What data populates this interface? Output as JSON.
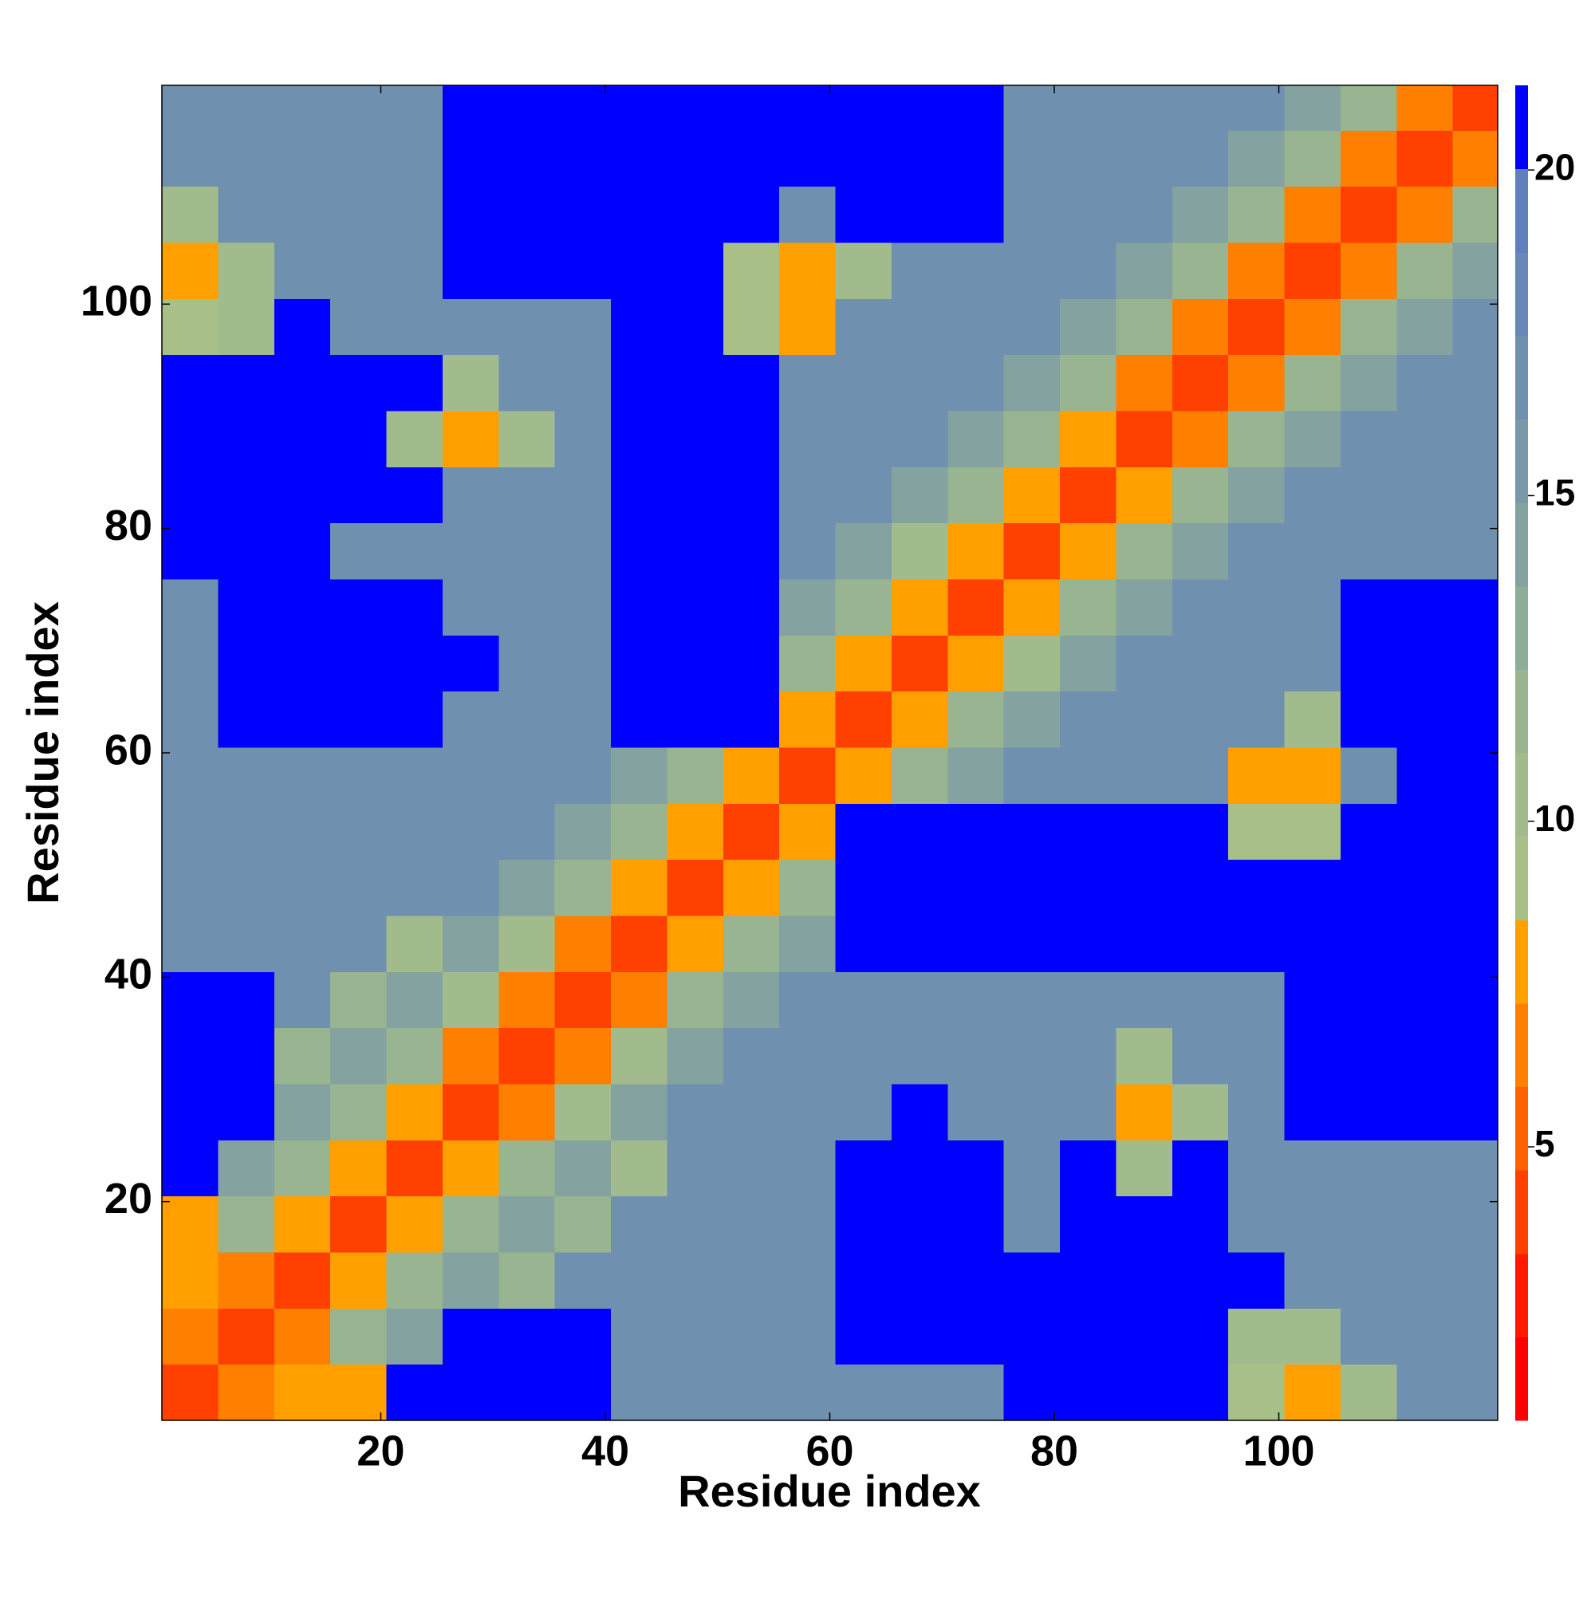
{
  "chart_data": {
    "type": "heatmap",
    "xlabel": "Residue index",
    "ylabel": "Residue index",
    "xlim": [
      0.5,
      119.5
    ],
    "ylim": [
      0.5,
      119.5
    ],
    "xticks": [
      20,
      40,
      60,
      80,
      100
    ],
    "yticks": [
      20,
      40,
      60,
      80,
      100
    ],
    "xbins": [
      0.5,
      5.5,
      10.5,
      15.5,
      20.5,
      25.5,
      30.5,
      35.5,
      40.5,
      45.5,
      50.5,
      55.5,
      60.5,
      65.5,
      70.5,
      75.5,
      80.5,
      85.5,
      90.5,
      95.5,
      100.5,
      105.5,
      110.5,
      115.5,
      119.5
    ],
    "ybins": [
      0.5,
      5.5,
      10.5,
      15.5,
      20.5,
      25.5,
      30.5,
      35.5,
      40.5,
      45.5,
      50.5,
      55.5,
      60.5,
      65.5,
      70.5,
      75.5,
      80.5,
      85.5,
      90.5,
      95.5,
      100.5,
      105.5,
      110.5,
      115.5,
      119.5
    ],
    "clim": [
      0.8,
      21.3
    ],
    "cticks": [
      5,
      10,
      15,
      20
    ],
    "colormap": [
      "#ff0000",
      "#ff1a00",
      "#ff4000",
      "#ff6000",
      "#ff8000",
      "#ffa000",
      "#a8bf88",
      "#a2bb8c",
      "#98b490",
      "#8eac98",
      "#84a2a0",
      "#7a98a8",
      "#7090b0",
      "#6888b8",
      "#5f80bc",
      "#0000ff"
    ],
    "values": [
      [
        3.8,
        6,
        8,
        8,
        21,
        21,
        21,
        21,
        17,
        17,
        17,
        17,
        17,
        17,
        17,
        21,
        21,
        21,
        21,
        9,
        8,
        11,
        17,
        17
      ],
      [
        6,
        3.8,
        6,
        12,
        14,
        21,
        21,
        21,
        17,
        17,
        17,
        17,
        21,
        21,
        21,
        21,
        21,
        21,
        21,
        10,
        10,
        17,
        17,
        17
      ],
      [
        8,
        6,
        3.8,
        8,
        12,
        14,
        12,
        17,
        17,
        17,
        17,
        17,
        21,
        21,
        21,
        21,
        21,
        21,
        21,
        21,
        17,
        17,
        17,
        17
      ],
      [
        8,
        12,
        8,
        3.8,
        8,
        12,
        14,
        12,
        17,
        17,
        17,
        17,
        21,
        21,
        21,
        17,
        21,
        21,
        21,
        17,
        17,
        17,
        17,
        17
      ],
      [
        21,
        14,
        12,
        8,
        3.8,
        8,
        12,
        14,
        11,
        17,
        17,
        17,
        21,
        21,
        21,
        17,
        20.5,
        11,
        20.5,
        17,
        17,
        17,
        17,
        17
      ],
      [
        21,
        21,
        14,
        12,
        8,
        3.8,
        7,
        10,
        14,
        17,
        17,
        17,
        17,
        21,
        17,
        17,
        17,
        8,
        11,
        17,
        21,
        21,
        21,
        21
      ],
      [
        21,
        21,
        12,
        14,
        12,
        7,
        3.8,
        7,
        10,
        14,
        17,
        17,
        17,
        17,
        17,
        17,
        17,
        10,
        17,
        17,
        21,
        21,
        21,
        21
      ],
      [
        21,
        21,
        17,
        12,
        14,
        10,
        7,
        3.8,
        7,
        12,
        14,
        17,
        17,
        17,
        17,
        17,
        17,
        17,
        17,
        17,
        21,
        21,
        21,
        21
      ],
      [
        17,
        17,
        17,
        17,
        11,
        14,
        10,
        7,
        3.8,
        8,
        12,
        14,
        21,
        21,
        21,
        21,
        21,
        21,
        21,
        21,
        21,
        21,
        21,
        21
      ],
      [
        17,
        17,
        17,
        17,
        17,
        17,
        14,
        12,
        8,
        3.8,
        8,
        12,
        21,
        21,
        21,
        21,
        21,
        21,
        21,
        21,
        21,
        21,
        21,
        21
      ],
      [
        17,
        17,
        17,
        17,
        17,
        17,
        17,
        14,
        12,
        8,
        3.8,
        8,
        21,
        21,
        21,
        21,
        21,
        21,
        21,
        9,
        9,
        20.5,
        20.5,
        20.5
      ],
      [
        17,
        17,
        17,
        17,
        17,
        17,
        17,
        17,
        14,
        12,
        8,
        3.8,
        8,
        12,
        14,
        17,
        17,
        17,
        17,
        8,
        8,
        17,
        20.5,
        20.5
      ],
      [
        17,
        21,
        21,
        21,
        21,
        17,
        17,
        17,
        21,
        21,
        21,
        8,
        3.8,
        8,
        12,
        14,
        17,
        17,
        17,
        17,
        10,
        21,
        21,
        21
      ],
      [
        17,
        21,
        21,
        21,
        21,
        21,
        17,
        17,
        21,
        21,
        21,
        12,
        8,
        3.8,
        8,
        10,
        14,
        17,
        17,
        17,
        17,
        21,
        21,
        21
      ],
      [
        17,
        21,
        21,
        21,
        21,
        17,
        17,
        17,
        21,
        21,
        21,
        14,
        12,
        8,
        3.8,
        8,
        12,
        14,
        17,
        17,
        17,
        21,
        21,
        21
      ],
      [
        21,
        21,
        21,
        17,
        17,
        17,
        17,
        17,
        21,
        21,
        21,
        17,
        14,
        10,
        8,
        3.8,
        8,
        12,
        14,
        17,
        17,
        17,
        17,
        17
      ],
      [
        21,
        21,
        21,
        21,
        20.5,
        17,
        17,
        17,
        21,
        21,
        21,
        17,
        17,
        14,
        12,
        8,
        3.8,
        8,
        12,
        14,
        17,
        17,
        17,
        17
      ],
      [
        21,
        21,
        21,
        21,
        11,
        8,
        10,
        17,
        21,
        21,
        21,
        17,
        17,
        17,
        14,
        12,
        8,
        3.8,
        7,
        12,
        14,
        17,
        17,
        17
      ],
      [
        21,
        21,
        21,
        21,
        20.5,
        11,
        17,
        17,
        21,
        21,
        21,
        17,
        17,
        17,
        17,
        14,
        12,
        7,
        3.8,
        6,
        12,
        14,
        17,
        17
      ],
      [
        9,
        10,
        21,
        17,
        17,
        17,
        17,
        17,
        21,
        21,
        9,
        8,
        17,
        17,
        17,
        17,
        14,
        12,
        6,
        3.8,
        6,
        12,
        14,
        17
      ],
      [
        8,
        10,
        17,
        17,
        17,
        21,
        21,
        21,
        21,
        21,
        9,
        8,
        10,
        17,
        17,
        17,
        17,
        14,
        12,
        6,
        3.8,
        6,
        12,
        14
      ],
      [
        11,
        17,
        17,
        17,
        17,
        21,
        21,
        21,
        21,
        21,
        20.5,
        17,
        21,
        21,
        21,
        17,
        17,
        17,
        14,
        12,
        6,
        3.8,
        6,
        12
      ],
      [
        17,
        17,
        17,
        17,
        17,
        21,
        21,
        21,
        21,
        21,
        20.5,
        20.5,
        21,
        21,
        21,
        17,
        17,
        17,
        17,
        14,
        12,
        6,
        3.8,
        6
      ],
      [
        17,
        17,
        17,
        17,
        17,
        21,
        21,
        21,
        21,
        21,
        20.5,
        20.5,
        21,
        21,
        21,
        17,
        17,
        17,
        17,
        17,
        14,
        12,
        6,
        3.8
      ]
    ]
  }
}
